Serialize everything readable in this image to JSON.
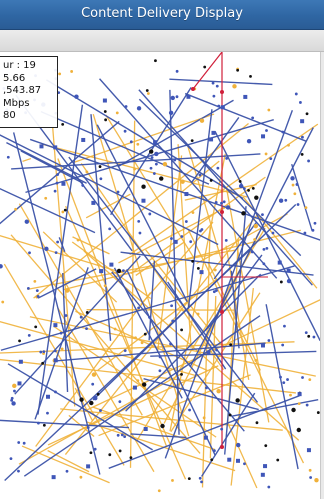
{
  "window": {
    "title": "Content Delivery Display"
  },
  "stats": {
    "lines": [
      "ur : 19",
      "5.66",
      ",543.87",
      "Mbps",
      "80"
    ]
  },
  "colors": {
    "link_blue": "#3b52a8",
    "link_orange": "#f0b13a",
    "node_blue": "#3f56b8",
    "node_black": "#111111",
    "highlight_red": "#d01f3a",
    "title_bg": "#3a73b2"
  },
  "icons": {
    "network_canvas": "network-graph-icon"
  }
}
